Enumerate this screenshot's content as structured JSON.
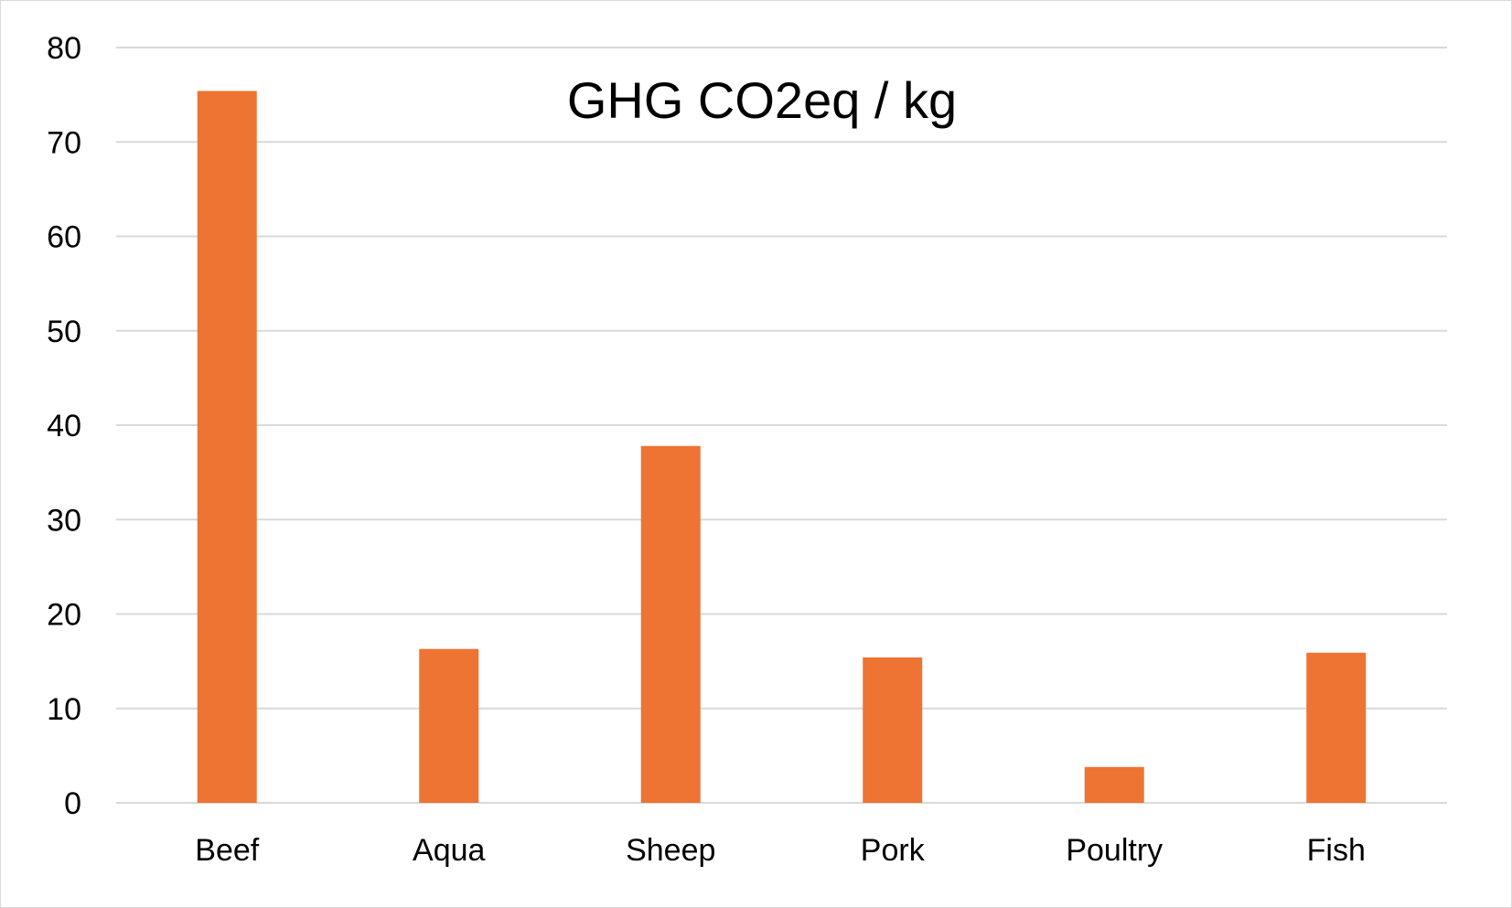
{
  "chart_data": {
    "type": "bar",
    "title": "GHG CO2eq / kg",
    "xlabel": "",
    "ylabel": "",
    "categories": [
      "Beef",
      "Aqua",
      "Sheep",
      "Pork",
      "Poultry",
      "Fish"
    ],
    "values": [
      75.4,
      16.3,
      37.8,
      15.4,
      3.8,
      15.9
    ],
    "ylim": [
      0,
      80
    ],
    "yticks": [
      "0",
      "10",
      "20",
      "30",
      "40",
      "50",
      "60",
      "70",
      "80"
    ],
    "grid": true,
    "legend": "none",
    "bar_color": "#ED7433",
    "grid_color": "#D9D9D9"
  }
}
